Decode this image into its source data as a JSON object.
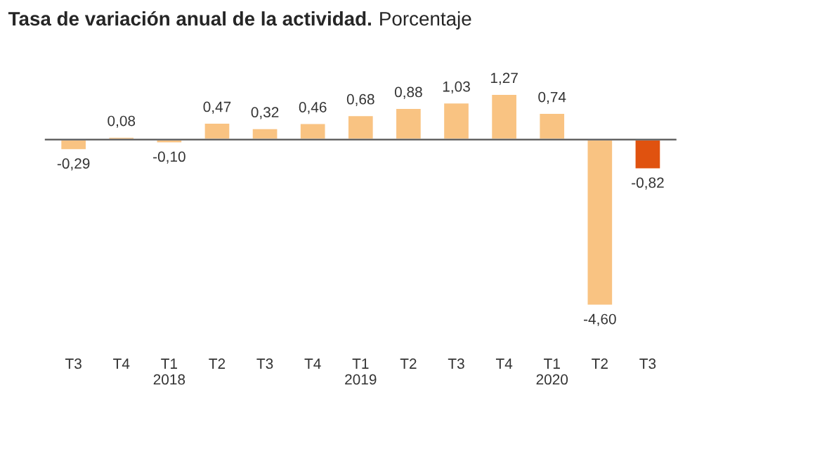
{
  "chart_data": {
    "type": "bar",
    "title": "Tasa de variación anual de la actividad.",
    "subtitle": "Porcentaje",
    "categories": [
      "T3",
      "T4",
      "T1\n2018",
      "T2",
      "T3",
      "T4",
      "T1\n2019",
      "T2",
      "T3",
      "T4",
      "T1\n2020",
      "T2",
      "T3"
    ],
    "values": [
      -0.29,
      0.08,
      -0.1,
      0.47,
      0.32,
      0.46,
      0.68,
      0.88,
      1.03,
      1.27,
      0.74,
      -4.6,
      -0.82
    ],
    "value_labels": [
      "-0,29",
      "0,08",
      "-0,10",
      "0,47",
      "0,32",
      "0,46",
      "0,68",
      "0,88",
      "1,03",
      "1,27",
      "0,74",
      "-4,60",
      "-0,82"
    ],
    "colors": [
      "#f9c382",
      "#f9c382",
      "#f9c382",
      "#f9c382",
      "#f9c382",
      "#f9c382",
      "#f9c382",
      "#f9c382",
      "#f9c382",
      "#f9c382",
      "#f9c382",
      "#f9c382",
      "#e0520f"
    ],
    "grid": false,
    "legend": false
  }
}
